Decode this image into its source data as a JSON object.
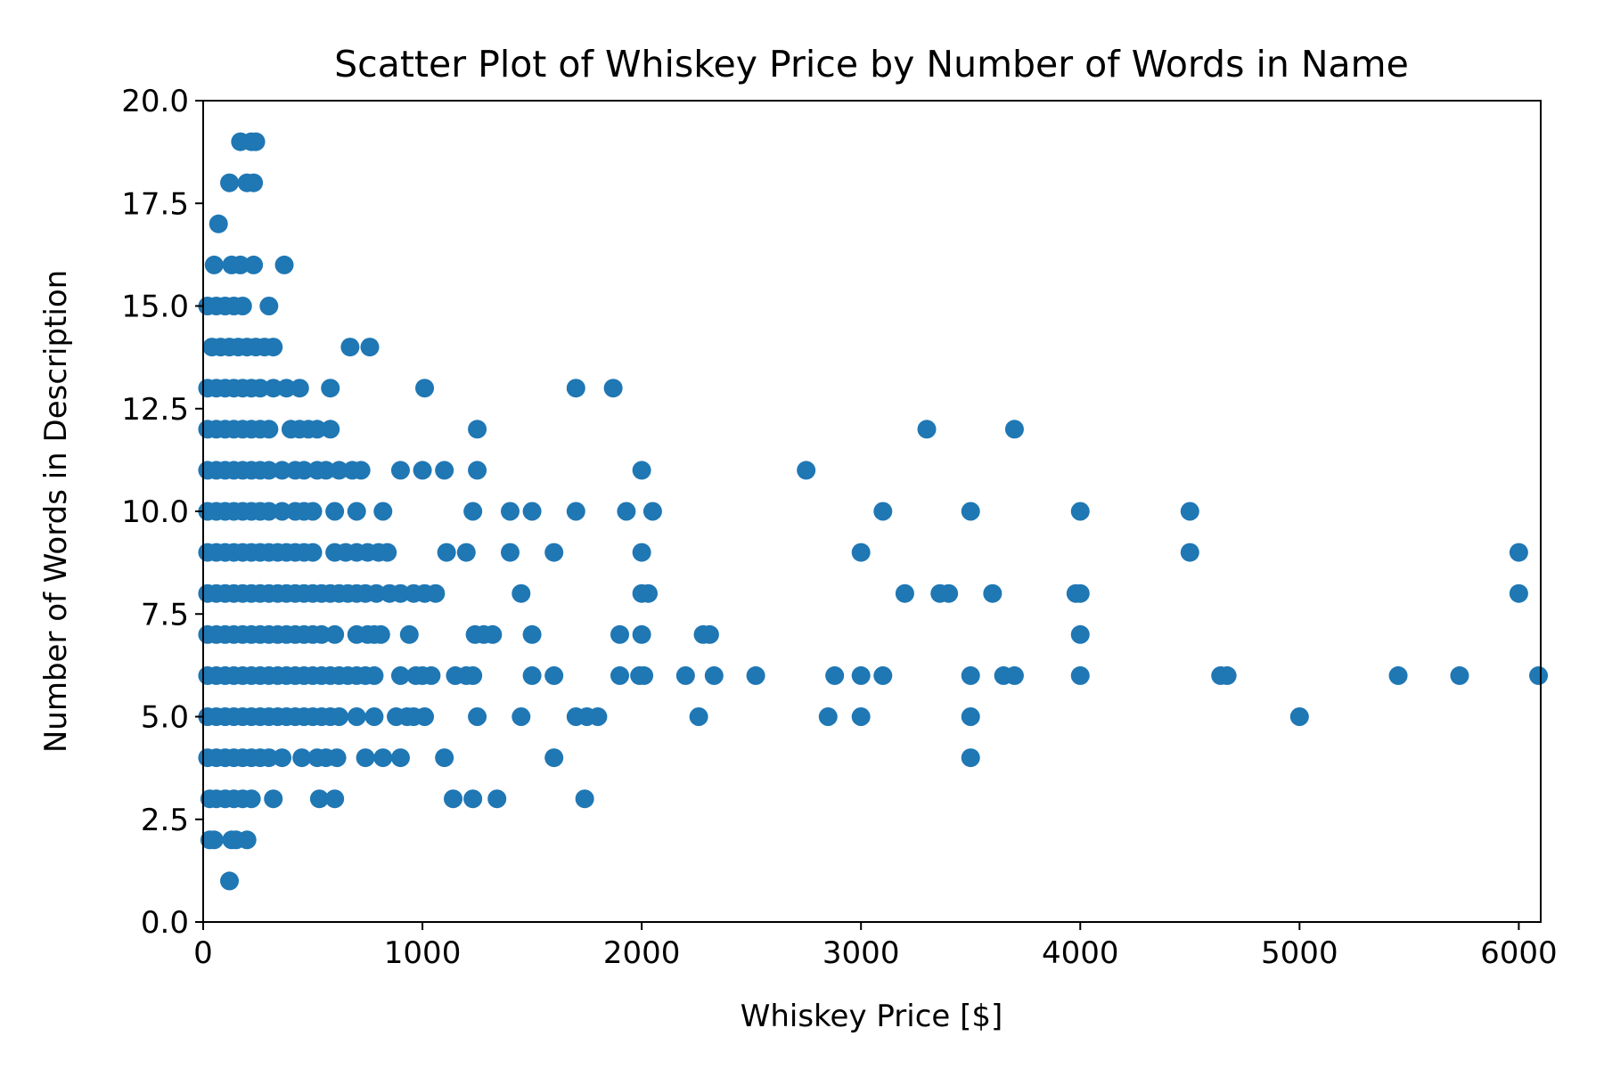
{
  "chart_data": {
    "type": "scatter",
    "title": "Scatter Plot of Whiskey Price by Number of Words in Name",
    "xlabel": "Whiskey Price [$]",
    "ylabel": "Number of Words in Description",
    "xlim": [
      0,
      6100
    ],
    "ylim": [
      0,
      20
    ],
    "x_ticks": [
      0,
      1000,
      2000,
      3000,
      4000,
      5000,
      6000
    ],
    "x_tick_labels": [
      "0",
      "1000",
      "2000",
      "3000",
      "4000",
      "5000",
      "6000"
    ],
    "y_ticks": [
      0,
      2.5,
      5,
      7.5,
      10,
      12.5,
      15,
      17.5,
      20
    ],
    "y_tick_labels": [
      "0.0",
      "2.5",
      "5.0",
      "7.5",
      "10.0",
      "12.5",
      "15.0",
      "17.5",
      "20.0"
    ],
    "grid": false,
    "marker_color": "#1f77b4",
    "series": [
      {
        "points": [
          [
            30,
            2
          ],
          [
            50,
            2
          ],
          [
            130,
            2
          ],
          [
            150,
            2
          ],
          [
            200,
            2
          ],
          [
            120,
            1
          ],
          [
            30,
            3
          ],
          [
            60,
            3
          ],
          [
            100,
            3
          ],
          [
            140,
            3
          ],
          [
            180,
            3
          ],
          [
            220,
            3
          ],
          [
            320,
            3
          ],
          [
            530,
            3
          ],
          [
            600,
            3
          ],
          [
            1140,
            3
          ],
          [
            1230,
            3
          ],
          [
            1340,
            3
          ],
          [
            1740,
            3
          ],
          [
            20,
            4
          ],
          [
            60,
            4
          ],
          [
            100,
            4
          ],
          [
            140,
            4
          ],
          [
            180,
            4
          ],
          [
            220,
            4
          ],
          [
            260,
            4
          ],
          [
            300,
            4
          ],
          [
            360,
            4
          ],
          [
            450,
            4
          ],
          [
            520,
            4
          ],
          [
            560,
            4
          ],
          [
            610,
            4
          ],
          [
            740,
            4
          ],
          [
            820,
            4
          ],
          [
            900,
            4
          ],
          [
            1100,
            4
          ],
          [
            1600,
            4
          ],
          [
            3500,
            4
          ],
          [
            20,
            5
          ],
          [
            60,
            5
          ],
          [
            100,
            5
          ],
          [
            140,
            5
          ],
          [
            180,
            5
          ],
          [
            220,
            5
          ],
          [
            260,
            5
          ],
          [
            300,
            5
          ],
          [
            340,
            5
          ],
          [
            380,
            5
          ],
          [
            420,
            5
          ],
          [
            460,
            5
          ],
          [
            500,
            5
          ],
          [
            540,
            5
          ],
          [
            580,
            5
          ],
          [
            620,
            5
          ],
          [
            700,
            5
          ],
          [
            780,
            5
          ],
          [
            880,
            5
          ],
          [
            930,
            5
          ],
          [
            960,
            5
          ],
          [
            1010,
            5
          ],
          [
            1250,
            5
          ],
          [
            1450,
            5
          ],
          [
            1700,
            5
          ],
          [
            1750,
            5
          ],
          [
            1800,
            5
          ],
          [
            2260,
            5
          ],
          [
            2850,
            5
          ],
          [
            3000,
            5
          ],
          [
            3500,
            5
          ],
          [
            5000,
            5
          ],
          [
            20,
            6
          ],
          [
            60,
            6
          ],
          [
            100,
            6
          ],
          [
            140,
            6
          ],
          [
            180,
            6
          ],
          [
            220,
            6
          ],
          [
            260,
            6
          ],
          [
            300,
            6
          ],
          [
            340,
            6
          ],
          [
            380,
            6
          ],
          [
            420,
            6
          ],
          [
            460,
            6
          ],
          [
            500,
            6
          ],
          [
            540,
            6
          ],
          [
            580,
            6
          ],
          [
            620,
            6
          ],
          [
            660,
            6
          ],
          [
            700,
            6
          ],
          [
            740,
            6
          ],
          [
            780,
            6
          ],
          [
            900,
            6
          ],
          [
            970,
            6
          ],
          [
            1000,
            6
          ],
          [
            1040,
            6
          ],
          [
            1150,
            6
          ],
          [
            1200,
            6
          ],
          [
            1230,
            6
          ],
          [
            1500,
            6
          ],
          [
            1600,
            6
          ],
          [
            1900,
            6
          ],
          [
            1990,
            6
          ],
          [
            2010,
            6
          ],
          [
            2200,
            6
          ],
          [
            2330,
            6
          ],
          [
            2520,
            6
          ],
          [
            2880,
            6
          ],
          [
            3000,
            6
          ],
          [
            3100,
            6
          ],
          [
            3500,
            6
          ],
          [
            3650,
            6
          ],
          [
            3700,
            6
          ],
          [
            4000,
            6
          ],
          [
            4640,
            6
          ],
          [
            4670,
            6
          ],
          [
            5450,
            6
          ],
          [
            5730,
            6
          ],
          [
            6090,
            6
          ],
          [
            20,
            7
          ],
          [
            60,
            7
          ],
          [
            100,
            7
          ],
          [
            140,
            7
          ],
          [
            180,
            7
          ],
          [
            220,
            7
          ],
          [
            260,
            7
          ],
          [
            300,
            7
          ],
          [
            340,
            7
          ],
          [
            380,
            7
          ],
          [
            420,
            7
          ],
          [
            460,
            7
          ],
          [
            500,
            7
          ],
          [
            540,
            7
          ],
          [
            600,
            7
          ],
          [
            700,
            7
          ],
          [
            750,
            7
          ],
          [
            780,
            7
          ],
          [
            810,
            7
          ],
          [
            940,
            7
          ],
          [
            1240,
            7
          ],
          [
            1280,
            7
          ],
          [
            1320,
            7
          ],
          [
            1500,
            7
          ],
          [
            1900,
            7
          ],
          [
            2000,
            7
          ],
          [
            2280,
            7
          ],
          [
            2310,
            7
          ],
          [
            4000,
            7
          ],
          [
            20,
            8
          ],
          [
            60,
            8
          ],
          [
            100,
            8
          ],
          [
            140,
            8
          ],
          [
            180,
            8
          ],
          [
            220,
            8
          ],
          [
            260,
            8
          ],
          [
            300,
            8
          ],
          [
            340,
            8
          ],
          [
            380,
            8
          ],
          [
            420,
            8
          ],
          [
            460,
            8
          ],
          [
            500,
            8
          ],
          [
            540,
            8
          ],
          [
            580,
            8
          ],
          [
            620,
            8
          ],
          [
            660,
            8
          ],
          [
            700,
            8
          ],
          [
            740,
            8
          ],
          [
            790,
            8
          ],
          [
            850,
            8
          ],
          [
            900,
            8
          ],
          [
            960,
            8
          ],
          [
            1010,
            8
          ],
          [
            1060,
            8
          ],
          [
            1450,
            8
          ],
          [
            2000,
            8
          ],
          [
            2030,
            8
          ],
          [
            3200,
            8
          ],
          [
            3360,
            8
          ],
          [
            3400,
            8
          ],
          [
            3600,
            8
          ],
          [
            3980,
            8
          ],
          [
            4000,
            8
          ],
          [
            6000,
            8
          ],
          [
            20,
            9
          ],
          [
            60,
            9
          ],
          [
            100,
            9
          ],
          [
            140,
            9
          ],
          [
            180,
            9
          ],
          [
            220,
            9
          ],
          [
            260,
            9
          ],
          [
            300,
            9
          ],
          [
            340,
            9
          ],
          [
            380,
            9
          ],
          [
            420,
            9
          ],
          [
            460,
            9
          ],
          [
            500,
            9
          ],
          [
            600,
            9
          ],
          [
            650,
            9
          ],
          [
            700,
            9
          ],
          [
            750,
            9
          ],
          [
            800,
            9
          ],
          [
            840,
            9
          ],
          [
            1110,
            9
          ],
          [
            1200,
            9
          ],
          [
            1400,
            9
          ],
          [
            1600,
            9
          ],
          [
            2000,
            9
          ],
          [
            3000,
            9
          ],
          [
            4500,
            9
          ],
          [
            6000,
            9
          ],
          [
            20,
            10
          ],
          [
            60,
            10
          ],
          [
            100,
            10
          ],
          [
            140,
            10
          ],
          [
            180,
            10
          ],
          [
            220,
            10
          ],
          [
            260,
            10
          ],
          [
            300,
            10
          ],
          [
            360,
            10
          ],
          [
            420,
            10
          ],
          [
            460,
            10
          ],
          [
            500,
            10
          ],
          [
            600,
            10
          ],
          [
            700,
            10
          ],
          [
            820,
            10
          ],
          [
            1230,
            10
          ],
          [
            1400,
            10
          ],
          [
            1500,
            10
          ],
          [
            1700,
            10
          ],
          [
            1930,
            10
          ],
          [
            2050,
            10
          ],
          [
            3100,
            10
          ],
          [
            3500,
            10
          ],
          [
            4000,
            10
          ],
          [
            4500,
            10
          ],
          [
            20,
            11
          ],
          [
            60,
            11
          ],
          [
            100,
            11
          ],
          [
            140,
            11
          ],
          [
            180,
            11
          ],
          [
            220,
            11
          ],
          [
            260,
            11
          ],
          [
            300,
            11
          ],
          [
            360,
            11
          ],
          [
            420,
            11
          ],
          [
            460,
            11
          ],
          [
            520,
            11
          ],
          [
            560,
            11
          ],
          [
            620,
            11
          ],
          [
            680,
            11
          ],
          [
            720,
            11
          ],
          [
            900,
            11
          ],
          [
            1000,
            11
          ],
          [
            1100,
            11
          ],
          [
            1250,
            11
          ],
          [
            2000,
            11
          ],
          [
            2750,
            11
          ],
          [
            20,
            12
          ],
          [
            60,
            12
          ],
          [
            100,
            12
          ],
          [
            140,
            12
          ],
          [
            180,
            12
          ],
          [
            220,
            12
          ],
          [
            260,
            12
          ],
          [
            300,
            12
          ],
          [
            400,
            12
          ],
          [
            440,
            12
          ],
          [
            480,
            12
          ],
          [
            520,
            12
          ],
          [
            580,
            12
          ],
          [
            1250,
            12
          ],
          [
            3300,
            12
          ],
          [
            3700,
            12
          ],
          [
            20,
            13
          ],
          [
            60,
            13
          ],
          [
            100,
            13
          ],
          [
            140,
            13
          ],
          [
            180,
            13
          ],
          [
            220,
            13
          ],
          [
            260,
            13
          ],
          [
            320,
            13
          ],
          [
            380,
            13
          ],
          [
            440,
            13
          ],
          [
            580,
            13
          ],
          [
            1010,
            13
          ],
          [
            1700,
            13
          ],
          [
            1870,
            13
          ],
          [
            40,
            14
          ],
          [
            80,
            14
          ],
          [
            120,
            14
          ],
          [
            160,
            14
          ],
          [
            200,
            14
          ],
          [
            240,
            14
          ],
          [
            280,
            14
          ],
          [
            320,
            14
          ],
          [
            670,
            14
          ],
          [
            760,
            14
          ],
          [
            20,
            15
          ],
          [
            60,
            15
          ],
          [
            100,
            15
          ],
          [
            140,
            15
          ],
          [
            180,
            15
          ],
          [
            300,
            15
          ],
          [
            50,
            16
          ],
          [
            130,
            16
          ],
          [
            170,
            16
          ],
          [
            230,
            16
          ],
          [
            370,
            16
          ],
          [
            70,
            17
          ],
          [
            120,
            18
          ],
          [
            200,
            18
          ],
          [
            230,
            18
          ],
          [
            170,
            19
          ],
          [
            220,
            19
          ],
          [
            240,
            19
          ]
        ]
      }
    ]
  }
}
